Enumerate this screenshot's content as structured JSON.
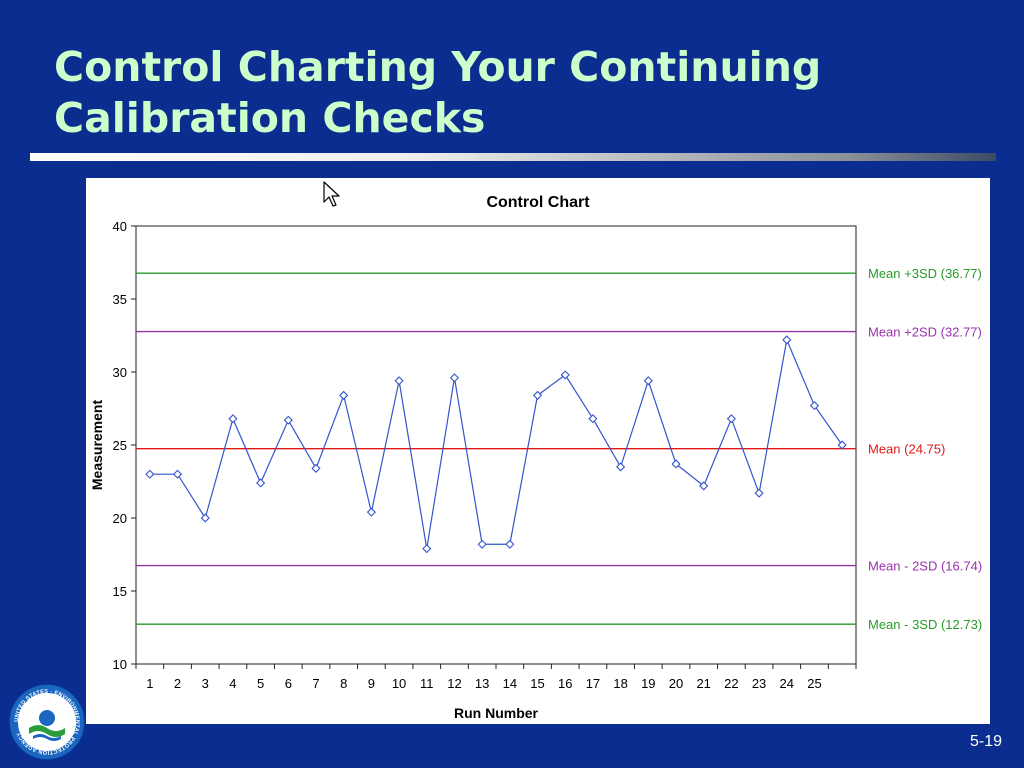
{
  "slide": {
    "title_lines": [
      "Control Charting Your Continuing",
      "Calibration Checks"
    ],
    "page_number": "5-19"
  },
  "logo": {
    "name": "epa-seal-icon",
    "text": "UNITED STATES · ENVIRONMENTAL PROTECTION AGENCY"
  },
  "colors": {
    "background": "#0a2d8f",
    "title": "#ccffcc",
    "series": "#3355cc",
    "mean": "#e01818",
    "two_sd": "#9933aa",
    "three_sd": "#2a9a2a"
  },
  "chart_data": {
    "type": "line",
    "title": "Control Chart",
    "xlabel": "Run Number",
    "ylabel": "Measurement",
    "ylim": [
      10,
      40
    ],
    "yticks": [
      10,
      15,
      20,
      25,
      30,
      35,
      40
    ],
    "x": [
      1,
      2,
      3,
      4,
      5,
      6,
      7,
      8,
      9,
      10,
      11,
      12,
      13,
      14,
      15,
      16,
      17,
      18,
      19,
      20,
      21,
      22,
      23,
      24,
      25,
      26
    ],
    "xtick_labels": [
      "1",
      "2",
      "3",
      "4",
      "5",
      "6",
      "7",
      "8",
      "9",
      "10",
      "11",
      "12",
      "13",
      "14",
      "15",
      "16",
      "17",
      "18",
      "19",
      "20",
      "21",
      "22",
      "23",
      "24",
      "25"
    ],
    "series": [
      {
        "values": [
          23.0,
          23.0,
          20.0,
          26.8,
          22.4,
          26.7,
          23.4,
          28.4,
          20.4,
          29.4,
          17.9,
          29.6,
          18.2,
          18.2,
          28.4,
          29.8,
          26.8,
          23.5,
          29.4,
          23.7,
          22.2,
          26.8,
          21.7,
          32.2,
          27.7,
          25.0
        ],
        "marker": "diamond"
      }
    ],
    "reference_lines": [
      {
        "label": "Mean +3SD (36.77)",
        "value": 36.77,
        "color": "#2a9a2a"
      },
      {
        "label": "Mean +2SD (32.77)",
        "value": 32.77,
        "color": "#9933aa"
      },
      {
        "label": "Mean (24.75)",
        "value": 24.75,
        "color": "#e01818"
      },
      {
        "label": "Mean - 2SD (16.74)",
        "value": 16.74,
        "color": "#9933aa"
      },
      {
        "label": "Mean - 3SD (12.73)",
        "value": 12.73,
        "color": "#2a9a2a"
      }
    ],
    "grid": false,
    "legend": "none"
  }
}
